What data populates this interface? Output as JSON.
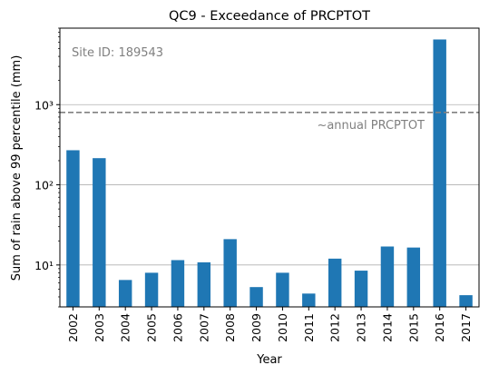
{
  "chart_data": {
    "type": "bar",
    "title": "QC9 - Exceedance of PRCPTOT",
    "xlabel": "Year",
    "ylabel": "Sum of rain above 99 percentile (mm)",
    "yscale": "log",
    "ylim": [
      3,
      9000
    ],
    "y_ticks": [
      10,
      100,
      1000
    ],
    "y_tick_labels": [
      "10¹",
      "10²",
      "10³"
    ],
    "grid": "horizontal major lines",
    "categories": [
      "2002",
      "2003",
      "2004",
      "2005",
      "2006",
      "2007",
      "2008",
      "2009",
      "2010",
      "2011",
      "2012",
      "2013",
      "2014",
      "2015",
      "2016",
      "2017"
    ],
    "values": [
      270,
      215,
      6.5,
      8,
      11.5,
      10.8,
      21,
      5.3,
      8,
      4.4,
      12,
      8.5,
      17,
      16.5,
      6500,
      4.2
    ],
    "bar_color": "#1f77b4",
    "reference_line": {
      "value": 800,
      "style": "dashed",
      "color": "#808080",
      "label": "~annual PRCPTOT"
    },
    "annotation": "Site ID: 189543"
  }
}
